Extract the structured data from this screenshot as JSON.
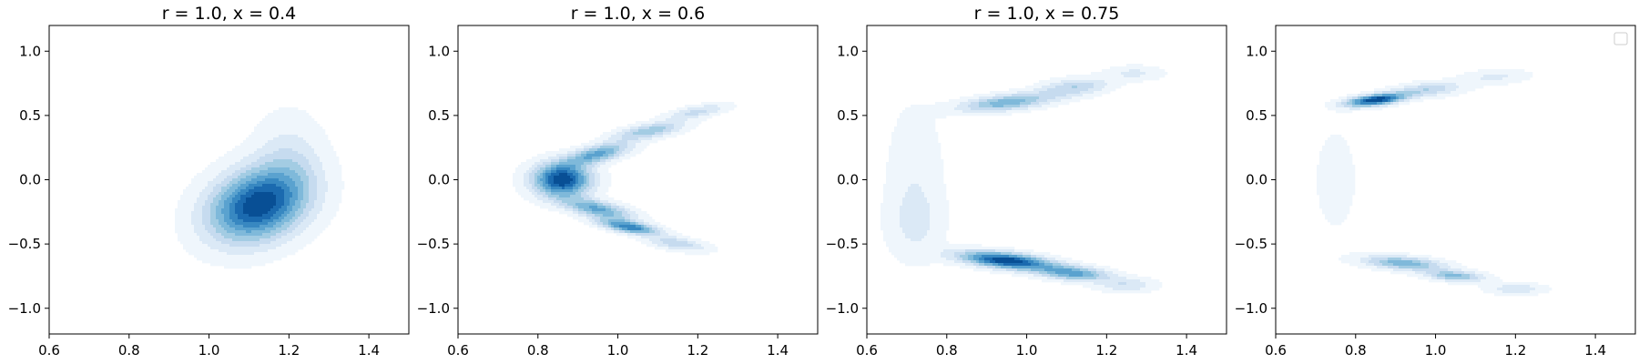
{
  "chart_data": [
    {
      "type": "contour",
      "title": "r = 1.0, x = 0.4",
      "xlabel": "",
      "ylabel": "",
      "xlim": [
        0.6,
        1.5
      ],
      "ylim": [
        -1.2,
        1.2
      ],
      "xticks": [
        "0.6",
        "0.8",
        "1.0",
        "1.2",
        "1.4"
      ],
      "yticks": [
        "−1.0",
        "−0.5",
        "0.0",
        "0.5",
        "1.0"
      ],
      "colormap": "Blues",
      "levels": 9,
      "legend": false,
      "density_peaks": [
        {
          "x": 1.12,
          "y": -0.2,
          "sx": 0.085,
          "sy": 0.2,
          "rho": 0.25,
          "w": 1.0
        },
        {
          "x": 1.2,
          "y": 0.15,
          "sx": 0.06,
          "sy": 0.25,
          "rho": 0.0,
          "w": 0.2
        }
      ]
    },
    {
      "type": "contour",
      "title": "r = 1.0, x = 0.6",
      "xlabel": "",
      "ylabel": "",
      "xlim": [
        0.6,
        1.5
      ],
      "ylim": [
        -1.2,
        1.2
      ],
      "xticks": [
        "0.6",
        "0.8",
        "1.0",
        "1.2",
        "1.4"
      ],
      "yticks": [
        "−1.0",
        "−0.5",
        "0.0",
        "0.5",
        "1.0"
      ],
      "colormap": "Blues",
      "levels": 9,
      "legend": false,
      "density_peaks": [
        {
          "x": 0.86,
          "y": 0.0,
          "sx": 0.05,
          "sy": 0.09,
          "rho": 0.0,
          "w": 1.0
        },
        {
          "x": 0.95,
          "y": 0.2,
          "sx": 0.055,
          "sy": 0.06,
          "rho": 0.6,
          "w": 0.6
        },
        {
          "x": 1.08,
          "y": 0.38,
          "sx": 0.06,
          "sy": 0.05,
          "rho": 0.6,
          "w": 0.45
        },
        {
          "x": 1.2,
          "y": 0.53,
          "sx": 0.05,
          "sy": 0.04,
          "rho": 0.6,
          "w": 0.3
        },
        {
          "x": 0.95,
          "y": -0.23,
          "sx": 0.06,
          "sy": 0.06,
          "rho": -0.6,
          "w": 0.6
        },
        {
          "x": 1.03,
          "y": -0.37,
          "sx": 0.05,
          "sy": 0.04,
          "rho": -0.6,
          "w": 0.75
        },
        {
          "x": 1.15,
          "y": -0.5,
          "sx": 0.05,
          "sy": 0.04,
          "rho": -0.5,
          "w": 0.35
        }
      ]
    },
    {
      "type": "contour",
      "title": "r = 1.0, x = 0.75",
      "xlabel": "",
      "ylabel": "",
      "xlim": [
        0.6,
        1.5
      ],
      "ylim": [
        -1.2,
        1.2
      ],
      "xticks": [
        "0.6",
        "0.8",
        "1.0",
        "1.2",
        "1.4"
      ],
      "yticks": [
        "−1.0",
        "−0.5",
        "0.0",
        "0.5",
        "1.0"
      ],
      "colormap": "Blues",
      "levels": 9,
      "legend": false,
      "density_peaks": [
        {
          "x": 0.95,
          "y": -0.63,
          "sx": 0.08,
          "sy": 0.05,
          "rho": -0.5,
          "w": 1.0
        },
        {
          "x": 1.12,
          "y": -0.73,
          "sx": 0.06,
          "sy": 0.04,
          "rho": -0.3,
          "w": 0.6
        },
        {
          "x": 1.25,
          "y": -0.82,
          "sx": 0.05,
          "sy": 0.04,
          "rho": 0.0,
          "w": 0.25
        },
        {
          "x": 0.95,
          "y": 0.6,
          "sx": 0.08,
          "sy": 0.05,
          "rho": 0.5,
          "w": 0.55
        },
        {
          "x": 1.12,
          "y": 0.72,
          "sx": 0.06,
          "sy": 0.05,
          "rho": 0.3,
          "w": 0.35
        },
        {
          "x": 1.27,
          "y": 0.83,
          "sx": 0.05,
          "sy": 0.04,
          "rho": 0.0,
          "w": 0.18
        },
        {
          "x": 0.72,
          "y": 0.1,
          "sx": 0.05,
          "sy": 0.35,
          "rho": 0.0,
          "w": 0.12
        },
        {
          "x": 0.72,
          "y": -0.35,
          "sx": 0.05,
          "sy": 0.2,
          "rho": 0.0,
          "w": 0.15
        }
      ]
    },
    {
      "type": "contour",
      "title": "",
      "xlabel": "",
      "ylabel": "",
      "xlim": [
        0.6,
        1.5
      ],
      "ylim": [
        -1.2,
        1.2
      ],
      "xticks": [
        "0.6",
        "0.8",
        "1.0",
        "1.2",
        "1.4"
      ],
      "yticks": [
        "−1.0",
        "−0.5",
        "0.0",
        "0.5",
        "1.0"
      ],
      "colormap": "Blues",
      "levels": 9,
      "legend": true,
      "legend_location": "upper right",
      "legend_entries": [],
      "density_peaks": [
        {
          "x": 0.85,
          "y": 0.62,
          "sx": 0.05,
          "sy": 0.035,
          "rho": 0.5,
          "w": 1.0
        },
        {
          "x": 0.98,
          "y": 0.7,
          "sx": 0.06,
          "sy": 0.04,
          "rho": 0.3,
          "w": 0.35
        },
        {
          "x": 1.15,
          "y": 0.8,
          "sx": 0.06,
          "sy": 0.04,
          "rho": 0.2,
          "w": 0.18
        },
        {
          "x": 0.92,
          "y": -0.65,
          "sx": 0.07,
          "sy": 0.04,
          "rho": -0.4,
          "w": 0.55
        },
        {
          "x": 1.05,
          "y": -0.75,
          "sx": 0.05,
          "sy": 0.03,
          "rho": -0.3,
          "w": 0.5
        },
        {
          "x": 1.2,
          "y": -0.85,
          "sx": 0.05,
          "sy": 0.03,
          "rho": 0.0,
          "w": 0.25
        },
        {
          "x": 0.75,
          "y": 0.0,
          "sx": 0.04,
          "sy": 0.3,
          "rho": 0.0,
          "w": 0.1
        }
      ]
    }
  ]
}
